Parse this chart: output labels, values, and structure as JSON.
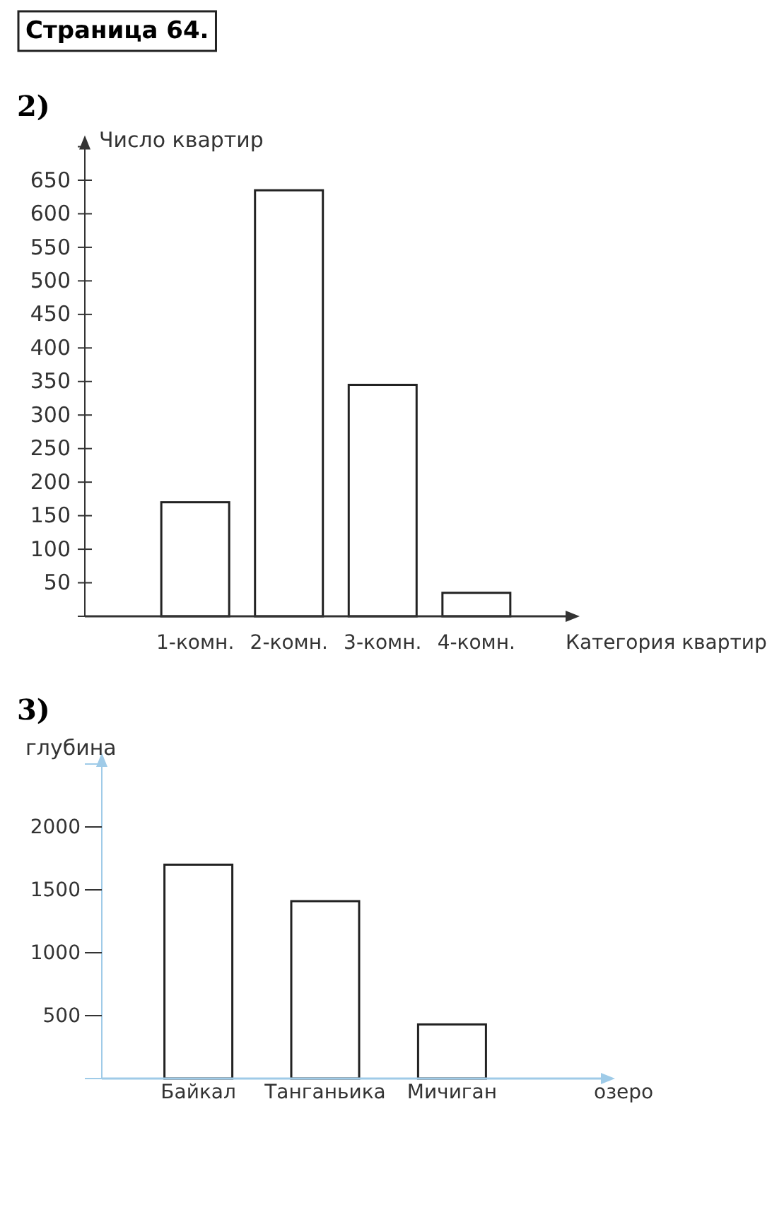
{
  "chart_data": [
    {
      "type": "bar",
      "title": "2)",
      "annotations": [
        "Страница 64."
      ],
      "ylabel": "Число квартир",
      "xlabel": "Категория квартир",
      "categories": [
        "1-комн.",
        "2-комн.",
        "3-комн.",
        "4-комн."
      ],
      "values": [
        170,
        635,
        345,
        35
      ],
      "color": "#ffffff",
      "ylim": [
        0,
        700
      ],
      "yticks": [
        50,
        100,
        150,
        200,
        250,
        300,
        350,
        400,
        450,
        500,
        550,
        600,
        650
      ],
      "grid": false
    },
    {
      "type": "bar",
      "title": "3)",
      "ylabel": "глубина",
      "xlabel": "озеро",
      "categories": [
        "Байкал",
        "Танганьика",
        "Мичиган"
      ],
      "values": [
        1700,
        1410,
        430
      ],
      "color": "#ffffff",
      "ylim": [
        0,
        2500
      ],
      "yticks": [
        500,
        1000,
        1500,
        2000
      ],
      "grid": false
    }
  ]
}
